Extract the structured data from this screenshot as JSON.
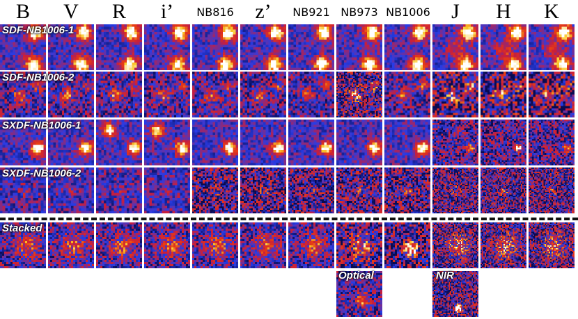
{
  "bands": [
    "B",
    "V",
    "R",
    "i’",
    "NB816",
    "z’",
    "NB921",
    "NB973",
    "NB1006",
    "J",
    "H",
    "K"
  ],
  "rows": [
    {
      "label": "SDF-NB1006-1"
    },
    {
      "label": "SDF-NB1006-2"
    },
    {
      "label": "SXDF-NB1006-1"
    },
    {
      "label": "SXDF-NB1006-2"
    },
    {
      "label": "Stacked"
    }
  ],
  "extra": [
    {
      "label": "Optical"
    },
    {
      "label": "NIR"
    }
  ]
}
